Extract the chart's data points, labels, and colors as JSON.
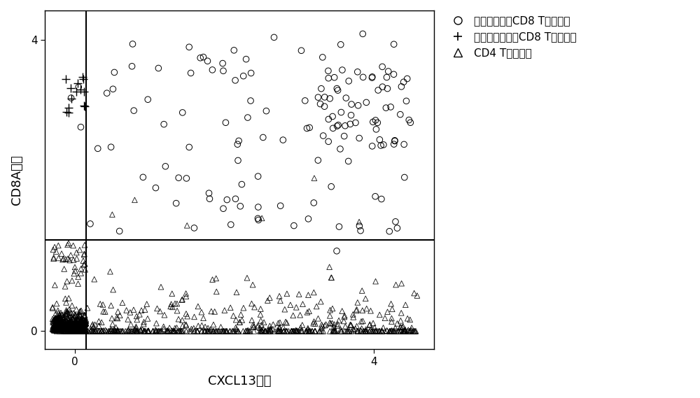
{
  "xlabel": "CXCL13表达",
  "ylabel": "CD8A表达",
  "xlim": [
    -0.4,
    4.8
  ],
  "ylim": [
    -0.25,
    4.4
  ],
  "xticks": [
    0,
    4
  ],
  "yticks": [
    0,
    4
  ],
  "vline_x": 0.15,
  "hline_y": 1.25,
  "background_color": "#ffffff",
  "plot_bg_color": "#ffffff",
  "legend_labels": [
    "癌细胞杀伤性CD8 T细胞克隆",
    "非癌细胞杀伤性CD8 T细胞克隆",
    "CD4 T细胞克隆"
  ],
  "font_size_label": 13,
  "font_size_tick": 11,
  "font_size_legend": 11
}
